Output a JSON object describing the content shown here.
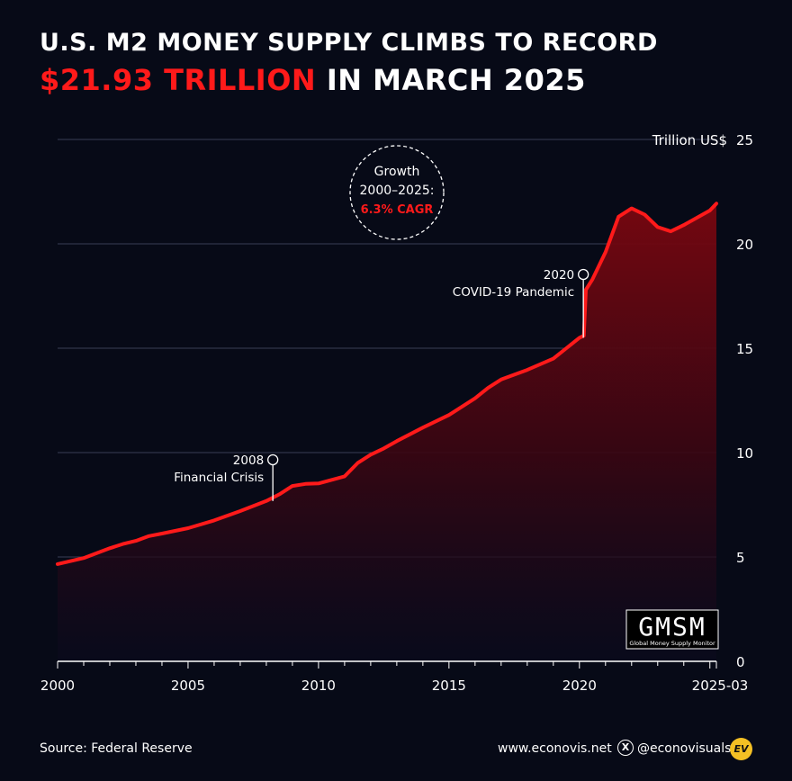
{
  "header": {
    "title_line1": "U.S. M2 Money Supply Climbs to Record",
    "title_highlight": "$21.93 Trillion",
    "title_rest": " in March 2025"
  },
  "colors": {
    "background": "#070a17",
    "line": "#ff1a1a",
    "highlight": "#ff1a1a",
    "grid": "#3a3f55"
  },
  "chart_data": {
    "type": "area",
    "ylabel": "Trillion US$",
    "y_axis_position": "right",
    "ylim": [
      0,
      25
    ],
    "yticks": [
      0,
      5,
      10,
      15,
      20,
      25
    ],
    "xlim": [
      2000,
      2025.25
    ],
    "xticks": [
      2000,
      2005,
      2010,
      2015,
      2020,
      2025.25
    ],
    "xtick_labels": [
      "2000",
      "2005",
      "2010",
      "2015",
      "2020",
      "2025-03"
    ],
    "grid": true,
    "series": [
      {
        "x": [
          2000.0,
          2001.0,
          2002.0,
          2002.5,
          2003.0,
          2003.5,
          2004.0,
          2005.0,
          2006.0,
          2007.0,
          2008.0,
          2008.5,
          2009.0,
          2009.5,
          2010.0,
          2011.0,
          2011.5,
          2012.0,
          2012.5,
          2013.0,
          2014.0,
          2015.0,
          2016.0,
          2016.5,
          2017.0,
          2018.0,
          2019.0,
          2019.5,
          2020.0,
          2020.17,
          2020.25,
          2020.5,
          2021.0,
          2021.5,
          2022.0,
          2022.5,
          2023.0,
          2023.5,
          2024.0,
          2025.0,
          2025.25
        ],
        "y": [
          4.66,
          4.95,
          5.42,
          5.62,
          5.77,
          6.0,
          6.12,
          6.38,
          6.75,
          7.2,
          7.68,
          8.0,
          8.4,
          8.5,
          8.52,
          8.86,
          9.5,
          9.9,
          10.2,
          10.55,
          11.2,
          11.8,
          12.6,
          13.1,
          13.5,
          13.96,
          14.5,
          15.0,
          15.5,
          15.6,
          17.8,
          18.3,
          19.6,
          21.3,
          21.7,
          21.4,
          20.8,
          20.6,
          20.9,
          21.6,
          21.93
        ]
      }
    ],
    "annotations": [
      {
        "year": "2008",
        "text": "Financial Crisis",
        "x": 2008.25,
        "y": 7.68
      },
      {
        "year": "2020",
        "text": "COVID-19 Pandemic",
        "x": 2020.15,
        "y": 15.5
      }
    ],
    "callout": {
      "line1": "Growth",
      "line2": "2000–2025:",
      "line3": "6.3% CAGR"
    }
  },
  "logo": {
    "name": "GMSM",
    "subtitle": "Global Money Supply Monitor"
  },
  "footer": {
    "source": "Source: Federal Reserve",
    "website": "www.econovis.net",
    "handle": "@econovisuals",
    "x_icon": "x-logo-icon",
    "ev_logo": "EV"
  }
}
